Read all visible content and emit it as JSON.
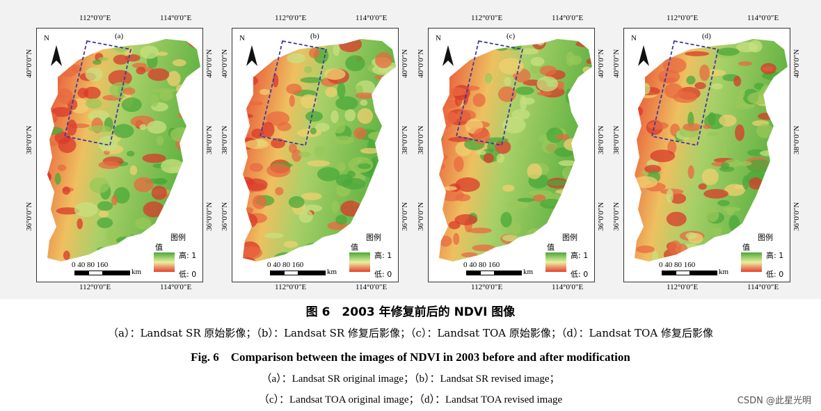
{
  "panels": [
    {
      "label": "(a)"
    },
    {
      "label": "(b)"
    },
    {
      "label": "(c)"
    },
    {
      "label": "(d)"
    }
  ],
  "axes": {
    "lon_left": "112°0′0″E",
    "lon_right": "114°0′0″E",
    "lat_top": "40°0′0″N",
    "lat_mid": "38°0′0″N",
    "lat_bot": "36°0′0″N"
  },
  "north_label": "N",
  "legend": {
    "title": "图例",
    "value_label": "值",
    "high": "高: 1",
    "low": "低: 0",
    "colors": {
      "high": "#4aa83a",
      "mid": "#e8f0a0",
      "low": "#e84030"
    }
  },
  "scale": {
    "ticks": "0 40 80 160",
    "unit": "km"
  },
  "captions": {
    "cn_title": "图 6　2003 年修复前后的 NDVI 图像",
    "cn_sub": "（a）：Landsat SR 原始影像；（b）：Landsat SR 修复后影像；（c）：Landsat TOA 原始影像；（d）：Landsat TOA 修复后影像",
    "en_title": "Fig. 6　Comparison between the images of NDVI in 2003 before and after modification",
    "en_sub1": "（a）：Landsat SR original image；（b）：Landsat SR revised image；",
    "en_sub2": "（c）：Landsat TOA original image；（d）：Landsat TOA revised image"
  },
  "watermark": "CSDN @此星光明",
  "box_color": "#3a3aa0"
}
